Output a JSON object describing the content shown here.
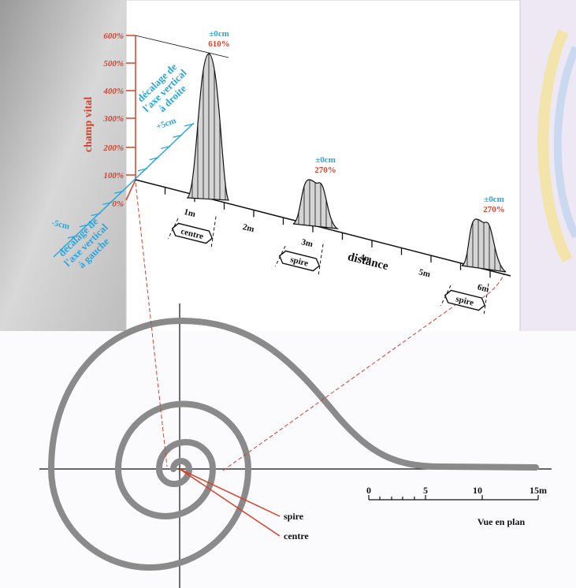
{
  "vertical_axis": {
    "title": "champ vital",
    "ticks": [
      "600%",
      "500%",
      "400%",
      "300%",
      "200%",
      "100%",
      "0%"
    ]
  },
  "lateral_axis": {
    "right_title": [
      "décalage de",
      "l'axe vertical",
      "à droite"
    ],
    "right_tick": "+5cm",
    "left_title": [
      "décalage de",
      "l'axe vertical",
      "à gauche"
    ],
    "left_tick": "-5cm"
  },
  "distance_axis": {
    "title": "distance",
    "ticks": [
      "1m",
      "2m",
      "3m",
      "4m",
      "5m",
      "6m"
    ]
  },
  "peaks": [
    {
      "offset": "±0cm",
      "value": "610%",
      "label": "centre"
    },
    {
      "offset": "±0cm",
      "value": "270%",
      "label": "spire"
    },
    {
      "offset": "±0cm",
      "value": "270%",
      "label": "spire"
    }
  ],
  "plan": {
    "labels": [
      "spire",
      "centre"
    ],
    "scale": [
      "0",
      "5",
      "10",
      "15m"
    ],
    "title": "Vue en plan"
  }
}
